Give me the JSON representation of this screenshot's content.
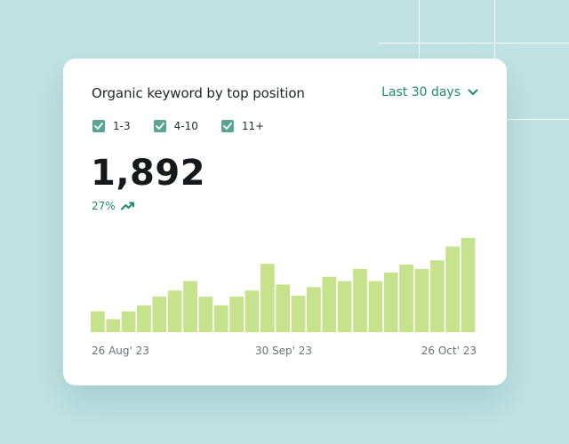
{
  "card": {
    "title": "Organic keyword by top position",
    "range_label": "Last 30 days"
  },
  "legend": [
    {
      "label": "1-3",
      "checked": true
    },
    {
      "label": "4-10",
      "checked": true
    },
    {
      "label": "11+",
      "checked": true
    }
  ],
  "summary": {
    "value": "1,892",
    "change": "27%",
    "trend_icon": "trend-up-icon"
  },
  "colors": {
    "background": "#c0e2e3",
    "accent": "#1f8a70",
    "checkbox": "#5aa493",
    "bar": "#c6e28c"
  },
  "chart_data": {
    "type": "bar",
    "x_tick_labels": [
      "26 Aug' 23",
      "30 Sep' 23",
      "26 Oct' 23"
    ],
    "values": [
      24,
      15,
      24,
      31,
      41,
      48,
      59,
      41,
      31,
      41,
      48,
      79,
      55,
      42,
      52,
      64,
      59,
      73,
      59,
      69,
      78,
      73,
      83,
      99,
      109
    ],
    "ylim": [
      0,
      115
    ],
    "grid": false
  }
}
